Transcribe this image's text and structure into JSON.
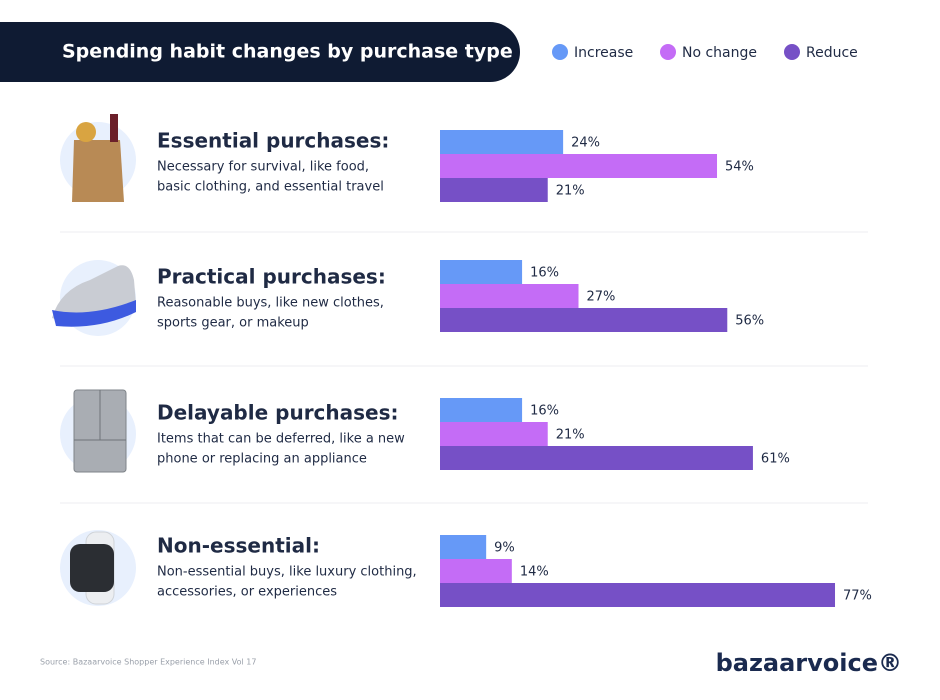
{
  "chart_data": {
    "type": "bar",
    "orientation": "horizontal",
    "title": "Spending habit changes by purchase type",
    "categories": [
      "Essential purchases:",
      "Practical purchases:",
      "Delayable purchases:",
      "Non-essential:"
    ],
    "descriptions": [
      [
        "Necessary for survival, like food,",
        "basic clothing, and essential travel"
      ],
      [
        "Reasonable buys, like new clothes,",
        "sports gear, or makeup"
      ],
      [
        "Items that can be deferred, like a new",
        "phone or replacing an appliance"
      ],
      [
        "Non-essential buys, like luxury clothing,",
        "accessories, or experiences"
      ]
    ],
    "series": [
      {
        "name": "Increase",
        "color": "#6699f7",
        "values": [
          24,
          16,
          16,
          9
        ],
        "value_labels": [
          "24%",
          "16%",
          "16%",
          "9%"
        ]
      },
      {
        "name": "No change",
        "color": "#c46cf6",
        "values": [
          54,
          27,
          21,
          14
        ],
        "value_labels": [
          "54%",
          "27%",
          "21%",
          "14%"
        ]
      },
      {
        "name": "Reduce",
        "color": "#7650c6",
        "values": [
          21,
          56,
          61,
          77
        ],
        "value_labels": [
          "21%",
          "56%",
          "61%",
          "77%"
        ]
      }
    ],
    "xlim": [
      0,
      100
    ],
    "source": "Source: Bazaarvoice Shopper Experience Index Vol 17",
    "brand": "bazaarvoice®"
  }
}
